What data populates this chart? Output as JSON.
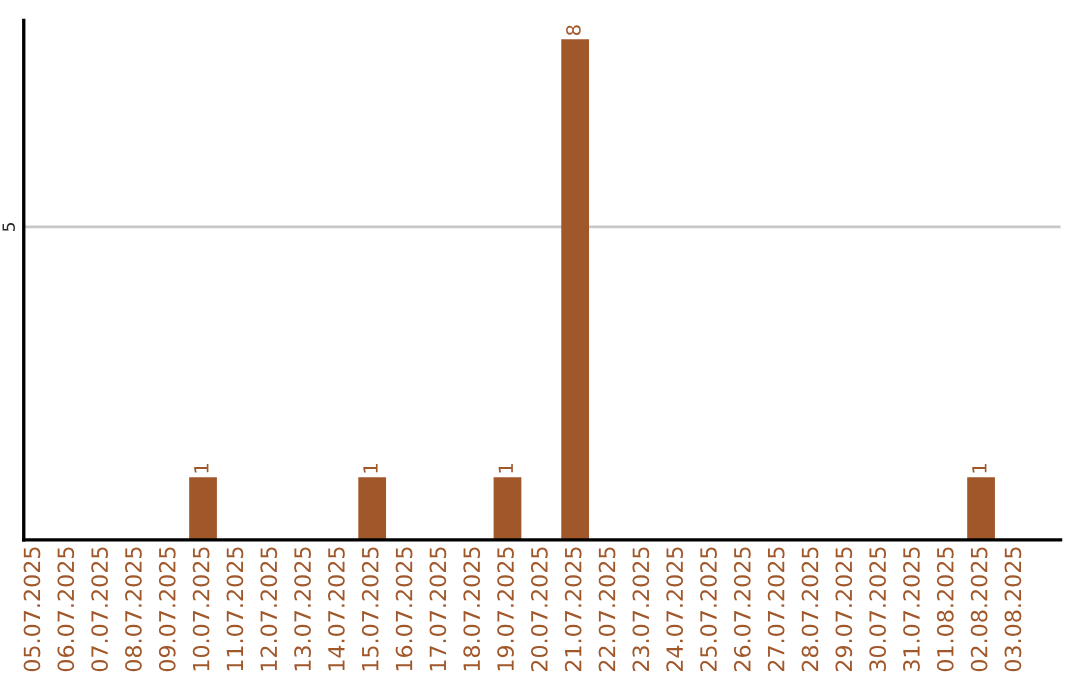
{
  "chart_data": {
    "type": "bar",
    "categories": [
      "05.07.2025",
      "06.07.2025",
      "07.07.2025",
      "08.07.2025",
      "09.07.2025",
      "10.07.2025",
      "11.07.2025",
      "12.07.2025",
      "13.07.2025",
      "14.07.2025",
      "15.07.2025",
      "16.07.2025",
      "17.07.2025",
      "18.07.2025",
      "19.07.2025",
      "20.07.2025",
      "21.07.2025",
      "22.07.2025",
      "23.07.2025",
      "24.07.2025",
      "25.07.2025",
      "26.07.2025",
      "27.07.2025",
      "28.07.2025",
      "29.07.2025",
      "30.07.2025",
      "31.07.2025",
      "01.08.2025",
      "02.08.2025",
      "03.08.2025"
    ],
    "values": [
      0,
      0,
      0,
      0,
      0,
      1,
      0,
      0,
      0,
      0,
      1,
      0,
      0,
      0,
      1,
      0,
      8,
      0,
      0,
      0,
      0,
      0,
      0,
      0,
      0,
      0,
      0,
      0,
      1,
      0
    ],
    "value_labels": [
      null,
      null,
      null,
      null,
      null,
      "1",
      null,
      null,
      null,
      null,
      "1",
      null,
      null,
      null,
      "1",
      null,
      "8",
      null,
      null,
      null,
      null,
      null,
      null,
      null,
      null,
      null,
      null,
      null,
      "1",
      null
    ],
    "color": "#a0572a",
    "ylim": [
      0,
      8.3
    ],
    "yticks": [
      5
    ],
    "grid": "y",
    "legend": false
  }
}
